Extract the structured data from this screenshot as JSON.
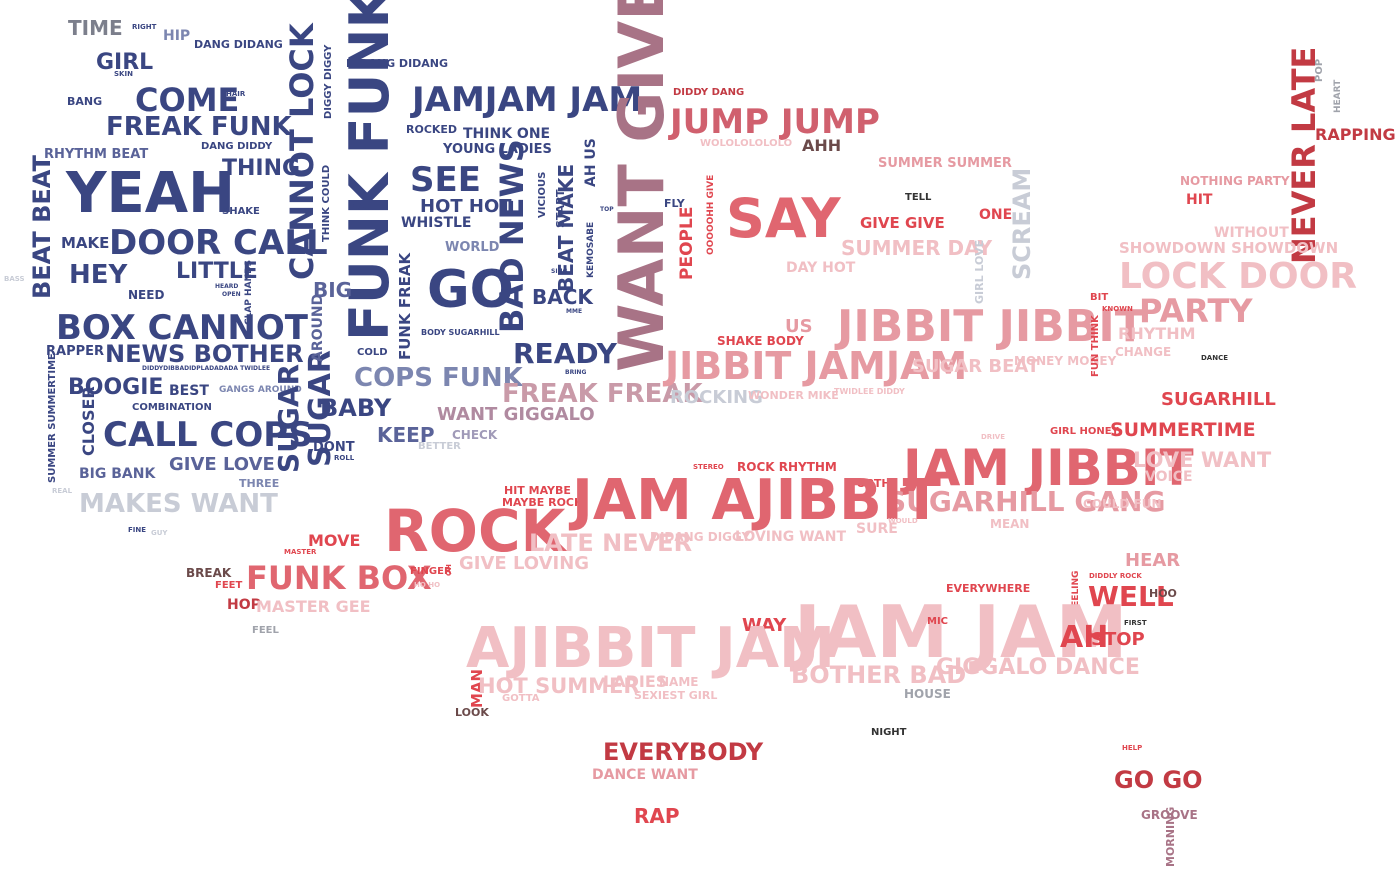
{
  "colors": {
    "navy": "#3a4682",
    "mauve": "#a87386",
    "red": "#e0464f",
    "crimson": "#c23a43",
    "pink": "#e69aa2",
    "pale_pink": "#f1bfc4",
    "gray": "#8a8d95",
    "light_gray": "#c8ccd6"
  },
  "words": [
    {
      "text": "TIME",
      "c": "#7c7f8c"
    },
    {
      "text": "RIGHT",
      "c": "#3a4682"
    },
    {
      "text": "HIP",
      "c": "#7c86b0"
    },
    {
      "text": "DANG DIDANG",
      "c": "#3a4682"
    },
    {
      "text": "GIRL",
      "c": "#3a4682"
    },
    {
      "text": "SKIN",
      "c": "#3a4682"
    },
    {
      "text": "BANG",
      "c": "#3a4682"
    },
    {
      "text": "COME",
      "c": "#3a4682"
    },
    {
      "text": "HAIR",
      "c": "#3a4682"
    },
    {
      "text": "FREAK FUNK",
      "c": "#3a4682"
    },
    {
      "text": "RHYTHM BEAT",
      "c": "#5a6399"
    },
    {
      "text": "DANG DIDDY",
      "c": "#3a4682"
    },
    {
      "text": "THING",
      "c": "#3a4682"
    },
    {
      "text": "YEAH",
      "c": "#3a4682"
    },
    {
      "text": "BEAT BEAT",
      "c": "#3a4682"
    },
    {
      "text": "SHAKE",
      "c": "#3a4682"
    },
    {
      "text": "MAKE",
      "c": "#3a4682"
    },
    {
      "text": "DOOR CALL",
      "c": "#3a4682"
    },
    {
      "text": "HEY",
      "c": "#3a4682"
    },
    {
      "text": "LITTLE",
      "c": "#3a4682"
    },
    {
      "text": "BASS",
      "c": "#c8ccd6"
    },
    {
      "text": "HEARD",
      "c": "#3a4682"
    },
    {
      "text": "OPEN",
      "c": "#3a4682"
    },
    {
      "text": "CLAP HANDS",
      "c": "#3a4682"
    },
    {
      "text": "NEED",
      "c": "#3a4682"
    },
    {
      "text": "BOX CANNOT",
      "c": "#3a4682"
    },
    {
      "text": "RAPPER",
      "c": "#3a4682"
    },
    {
      "text": "NEWS BOTHER",
      "c": "#3a4682"
    },
    {
      "text": "DIDDYDIBBADIDPLADADADA TWIDLEE",
      "c": "#3a4682"
    },
    {
      "text": "BOOGIE",
      "c": "#3a4682"
    },
    {
      "text": "BEST",
      "c": "#3a4682"
    },
    {
      "text": "GANGS AROUND",
      "c": "#7c86b0"
    },
    {
      "text": "SUMMER SUMMERTIME",
      "c": "#3a4682"
    },
    {
      "text": "COMBINATION",
      "c": "#3a4682"
    },
    {
      "text": "CLOSER",
      "c": "#3a4682"
    },
    {
      "text": "CALL COPS",
      "c": "#3a4682"
    },
    {
      "text": "GIVE LOVE",
      "c": "#5a6399"
    },
    {
      "text": "BIG BANK",
      "c": "#5a6399"
    },
    {
      "text": "THREE",
      "c": "#7c86b0"
    },
    {
      "text": "REAL",
      "c": "#c8ccd6"
    },
    {
      "text": "MAKES WANT",
      "c": "#c8ccd6"
    },
    {
      "text": "FINE",
      "c": "#3a4682"
    },
    {
      "text": "GUY",
      "c": "#c8ccd6"
    },
    {
      "text": "DIDANG DIDANG",
      "c": "#3a4682"
    },
    {
      "text": "DIGGY DIGGY",
      "c": "#3a4682"
    },
    {
      "text": "CANNOT LOCK",
      "c": "#3a4682"
    },
    {
      "text": "SUGAR",
      "c": "#3a4682"
    },
    {
      "text": "SUGAR",
      "c": "#3a4682"
    },
    {
      "text": "THINK COULD",
      "c": "#3a4682"
    },
    {
      "text": "FUNK FUNK",
      "c": "#3a4682"
    },
    {
      "text": "PLACE",
      "c": "#3a4682"
    },
    {
      "text": "BIG",
      "c": "#5a6399"
    },
    {
      "text": "AROUND",
      "c": "#5a6399"
    },
    {
      "text": "FUNK FREAK",
      "c": "#3a4682"
    },
    {
      "text": "COLD",
      "c": "#3a4682"
    },
    {
      "text": "BODY SUGARHILL",
      "c": "#3a4682"
    },
    {
      "text": "JAMJAM JAM",
      "c": "#3a4682"
    },
    {
      "text": "ROCKED",
      "c": "#3a4682"
    },
    {
      "text": "THINK ONE",
      "c": "#3a4682"
    },
    {
      "text": "YOUNG LADIES",
      "c": "#3a4682"
    },
    {
      "text": "SEE",
      "c": "#3a4682"
    },
    {
      "text": "HOT HOT",
      "c": "#3a4682"
    },
    {
      "text": "WHISTLE",
      "c": "#3a4682"
    },
    {
      "text": "WORLD",
      "c": "#7c86b0"
    },
    {
      "text": "GO",
      "c": "#3a4682"
    },
    {
      "text": "BAD NEWS",
      "c": "#3a4682"
    },
    {
      "text": "VICIOUS",
      "c": "#3a4682"
    },
    {
      "text": "START",
      "c": "#3a4682"
    },
    {
      "text": "BEAT MAKE",
      "c": "#3a4682"
    },
    {
      "text": "AH US",
      "c": "#3a4682"
    },
    {
      "text": "TOP",
      "c": "#3a4682"
    },
    {
      "text": "KEMOSABE",
      "c": "#3a4682"
    },
    {
      "text": "SING",
      "c": "#3a4682"
    },
    {
      "text": "BACK",
      "c": "#3a4682"
    },
    {
      "text": "MME",
      "c": "#3a4682"
    },
    {
      "text": "READY",
      "c": "#3a4682"
    },
    {
      "text": "BRING",
      "c": "#3a4682"
    },
    {
      "text": "COPS FUNK",
      "c": "#7c86b0"
    },
    {
      "text": "BABY",
      "c": "#3a4682"
    },
    {
      "text": "DONT",
      "c": "#3a4682"
    },
    {
      "text": "ROLL",
      "c": "#3a4682"
    },
    {
      "text": "KEEP",
      "c": "#5a6399"
    },
    {
      "text": "BETTER",
      "c": "#c8ccd6"
    },
    {
      "text": "CHECK",
      "c": "#a09ab8"
    },
    {
      "text": "WANT GIGGALO",
      "c": "#b08aa0"
    },
    {
      "text": "FREAK FREAK",
      "c": "#c99aa8"
    },
    {
      "text": "WANT GIVE",
      "c": "#a87386"
    },
    {
      "text": "FLY",
      "c": "#3a4682"
    },
    {
      "text": "DIDDY DANG",
      "c": "#c23a43"
    },
    {
      "text": "JUMP JUMP",
      "c": "#d0606e"
    },
    {
      "text": "WOLOLOLOLOLO",
      "c": "#f1bfc4"
    },
    {
      "text": "AHH",
      "c": "#6b4a4a"
    },
    {
      "text": "PEOPLE",
      "c": "#e0464f"
    },
    {
      "text": "OOOOOHH GIVE",
      "c": "#e0464f"
    },
    {
      "text": "SAY",
      "c": "#e06670"
    },
    {
      "text": "SUMMER SUMMER",
      "c": "#e69aa2"
    },
    {
      "text": "TELL",
      "c": "#333333"
    },
    {
      "text": "GIVE GIVE",
      "c": "#e0464f"
    },
    {
      "text": "ONE",
      "c": "#e0464f"
    },
    {
      "text": "SUMMER DAY",
      "c": "#f1bfc4"
    },
    {
      "text": "DAY HOT",
      "c": "#f1bfc4"
    },
    {
      "text": "GIRL LOVE",
      "c": "#c8ccd6"
    },
    {
      "text": "SCREAM",
      "c": "#c8ccd6"
    },
    {
      "text": "SHAKE BODY",
      "c": "#e0464f"
    },
    {
      "text": "US",
      "c": "#e69aa2"
    },
    {
      "text": "JIBBIT JIBBIT",
      "c": "#e69aa2"
    },
    {
      "text": "JIBBIT JAMJAM",
      "c": "#e69aa2"
    },
    {
      "text": "SUGAR BEAT",
      "c": "#f1bfc4"
    },
    {
      "text": "MONEY MONEY",
      "c": "#f1bfc4"
    },
    {
      "text": "ROCKING",
      "c": "#c8ccd6"
    },
    {
      "text": "WONDER MIKE",
      "c": "#f1bfc4"
    },
    {
      "text": "TWIDLEE DIDDY",
      "c": "#f1bfc4"
    },
    {
      "text": "POP",
      "c": "#a0a3ab"
    },
    {
      "text": "HEART",
      "c": "#a0a3ab"
    },
    {
      "text": "RAPPING",
      "c": "#c23a43"
    },
    {
      "text": "NEVER LATE",
      "c": "#c23a43"
    },
    {
      "text": "NOTHING PARTY",
      "c": "#e69aa2"
    },
    {
      "text": "HIT",
      "c": "#e0464f"
    },
    {
      "text": "WITHOUT",
      "c": "#f1bfc4"
    },
    {
      "text": "SHOWDOWN SHOWDOWN",
      "c": "#f1bfc4"
    },
    {
      "text": "LOCK DOOR",
      "c": "#f1bfc4"
    },
    {
      "text": "PARTY",
      "c": "#e69aa2"
    },
    {
      "text": "BIT",
      "c": "#e0464f"
    },
    {
      "text": "KNOWN",
      "c": "#e0464f"
    },
    {
      "text": "FUN THINK",
      "c": "#e0464f"
    },
    {
      "text": "RHYTHM",
      "c": "#f1bfc4"
    },
    {
      "text": "CHANGE",
      "c": "#f1bfc4"
    },
    {
      "text": "DANCE",
      "c": "#333333"
    },
    {
      "text": "SUGARHILL",
      "c": "#e0464f"
    },
    {
      "text": "GIRL HONEY",
      "c": "#e0464f"
    },
    {
      "text": "SUMMERTIME",
      "c": "#e0464f"
    },
    {
      "text": "JAM JIBBIT",
      "c": "#e06670"
    },
    {
      "text": "LOVE WANT",
      "c": "#f1bfc4"
    },
    {
      "text": "VOICE",
      "c": "#f1bfc4"
    },
    {
      "text": "SUGARHILL GANG",
      "c": "#e69aa2"
    },
    {
      "text": "COULD FUN",
      "c": "#f1bfc4"
    },
    {
      "text": "MEAN",
      "c": "#f1bfc4"
    },
    {
      "text": "DRIVE",
      "c": "#f1bfc4"
    },
    {
      "text": "STEREO",
      "c": "#e0464f"
    },
    {
      "text": "ROCK RHYTHM",
      "c": "#e0464f"
    },
    {
      "text": "FORTH",
      "c": "#e0464f"
    },
    {
      "text": "HIT MAYBE",
      "c": "#e0464f"
    },
    {
      "text": "MAYBE ROCK",
      "c": "#e0464f"
    },
    {
      "text": "JAM AJIBBIT",
      "c": "#e06670"
    },
    {
      "text": "ROCK",
      "c": "#e06670"
    },
    {
      "text": "SURE",
      "c": "#f1bfc4"
    },
    {
      "text": "WOULD",
      "c": "#f1bfc4"
    },
    {
      "text": "LATE NEVER",
      "c": "#f1bfc4"
    },
    {
      "text": "DIDANG DIGGY",
      "c": "#f1bfc4"
    },
    {
      "text": "LOVING WANT",
      "c": "#f1bfc4"
    },
    {
      "text": "MOVE",
      "c": "#e0464f"
    },
    {
      "text": "MASTER",
      "c": "#e0464f"
    },
    {
      "text": "GIVE LOVING",
      "c": "#f1bfc4"
    },
    {
      "text": "BREAK",
      "c": "#6b4a4a"
    },
    {
      "text": "FUNK BOX",
      "c": "#e06670"
    },
    {
      "text": "FEET",
      "c": "#e0464f"
    },
    {
      "text": "FINGER",
      "c": "#e0464f"
    },
    {
      "text": "OH",
      "c": "#e0464f"
    },
    {
      "text": "HO HO",
      "c": "#f1bfc4"
    },
    {
      "text": "HOP",
      "c": "#c23a43"
    },
    {
      "text": "MASTER GEE",
      "c": "#f1bfc4"
    },
    {
      "text": "FEEL",
      "c": "#a0a3ab"
    },
    {
      "text": "HEAR",
      "c": "#e69aa2"
    },
    {
      "text": "EVERYWHERE",
      "c": "#e0464f"
    },
    {
      "text": "DIDDLY ROCK",
      "c": "#e0464f"
    },
    {
      "text": "FEELING",
      "c": "#e0464f"
    },
    {
      "text": "WELL",
      "c": "#e0464f"
    },
    {
      "text": "HOO",
      "c": "#6b4a4a"
    },
    {
      "text": "WAY",
      "c": "#e0464f"
    },
    {
      "text": "JAM JAM",
      "c": "#f1bfc4"
    },
    {
      "text": "MIC",
      "c": "#e0464f"
    },
    {
      "text": "FIRST",
      "c": "#333333"
    },
    {
      "text": "AH",
      "c": "#e0464f"
    },
    {
      "text": "STOP",
      "c": "#e0464f"
    },
    {
      "text": "AJIBBIT JAM",
      "c": "#f1bfc4"
    },
    {
      "text": "BOTHER BAD",
      "c": "#f1bfc4"
    },
    {
      "text": "GIGGALO DANCE",
      "c": "#f1bfc4"
    },
    {
      "text": "MAN",
      "c": "#e0464f"
    },
    {
      "text": "HOT SUMMER",
      "c": "#f1bfc4"
    },
    {
      "text": "LADIES",
      "c": "#f1bfc4"
    },
    {
      "text": "NAME",
      "c": "#f1bfc4"
    },
    {
      "text": "LOOK",
      "c": "#6b4a4a"
    },
    {
      "text": "GOTTA",
      "c": "#f1bfc4"
    },
    {
      "text": "SEXIEST GIRL",
      "c": "#f1bfc4"
    },
    {
      "text": "HOUSE",
      "c": "#a0a3ab"
    },
    {
      "text": "NIGHT",
      "c": "#333333"
    },
    {
      "text": "EVERYBODY",
      "c": "#c23a43"
    },
    {
      "text": "DANCE WANT",
      "c": "#e69aa2"
    },
    {
      "text": "HELP",
      "c": "#e0464f"
    },
    {
      "text": "GO GO",
      "c": "#c23a43"
    },
    {
      "text": "RAP",
      "c": "#e0464f"
    },
    {
      "text": "GROOVE",
      "c": "#a87386"
    },
    {
      "text": "MORNING",
      "c": "#a87386"
    }
  ]
}
